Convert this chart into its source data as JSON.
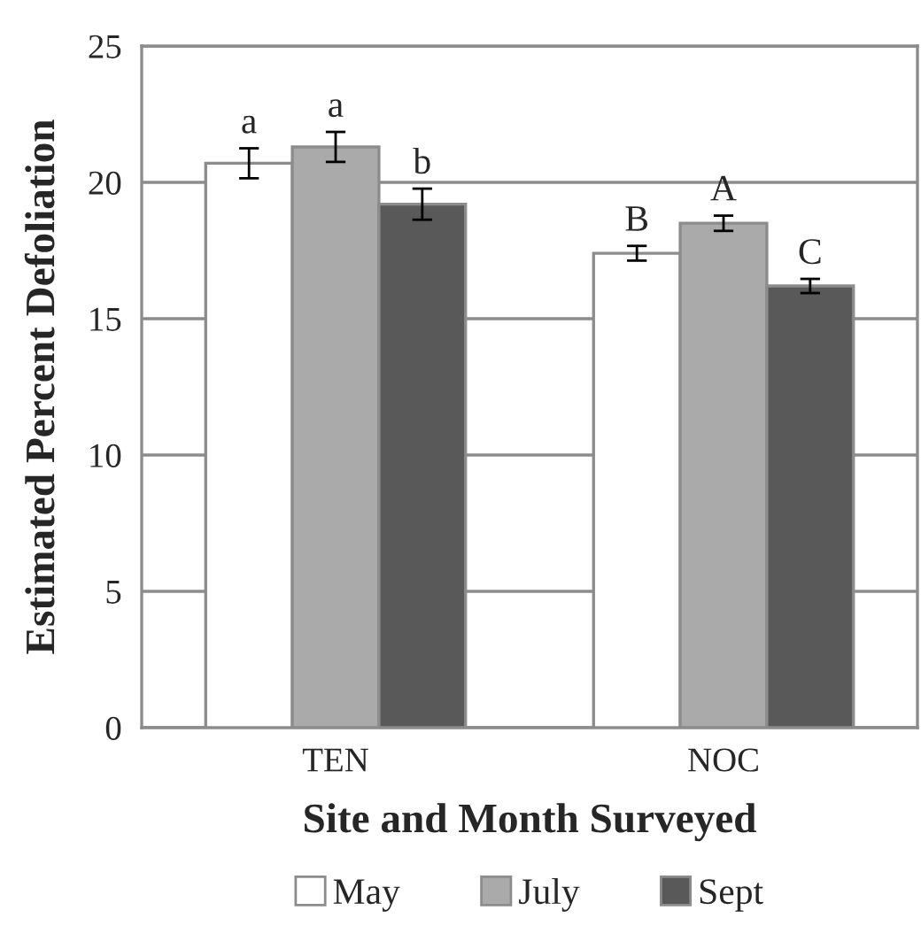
{
  "chart_data": {
    "type": "bar",
    "xlabel": "Site and Month Surveyed",
    "ylabel": "Estimated Percent Defoliation",
    "categories": [
      "TEN",
      "NOC"
    ],
    "series": [
      {
        "name": "May",
        "color": "#ffffff",
        "values": [
          20.7,
          17.4
        ],
        "errors": [
          0.55,
          0.27
        ],
        "value_labels": [
          "a",
          "B"
        ]
      },
      {
        "name": "July",
        "color": "#aaaaaa",
        "values": [
          21.3,
          18.5
        ],
        "errors": [
          0.55,
          0.28
        ],
        "value_labels": [
          "a",
          "A"
        ]
      },
      {
        "name": "Sept",
        "color": "#595959",
        "values": [
          19.2,
          16.2
        ],
        "errors": [
          0.57,
          0.26
        ],
        "value_labels": [
          "b",
          "C"
        ]
      }
    ],
    "ylim": [
      0,
      25
    ],
    "yticks": [
      0,
      5,
      10,
      15,
      20,
      25
    ],
    "grid": "y",
    "legend": "bottom"
  }
}
